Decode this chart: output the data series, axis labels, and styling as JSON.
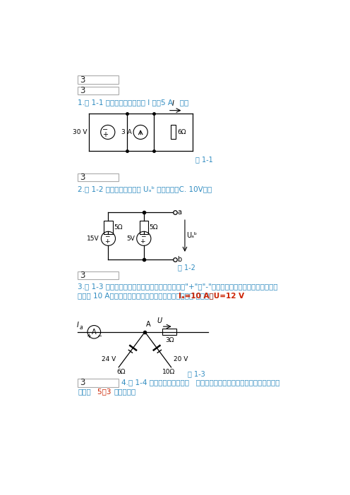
{
  "bg_color": "#ffffff",
  "text_color_blue": "#2e8bc0",
  "text_color_red": "#cc2200",
  "text_color_black": "#222222",
  "box1_text": "3",
  "box2_text": "3",
  "box3_text": "3",
  "box4_text": "3",
  "q1_text": "1.图 1-1 所示的电路中，电流 I 为（5 A   ）。",
  "q2_text": "2.图 1-2 所示电路中，电压 Uₐᵇ 的数值是（C. 10V）。",
  "q3_line1": "3.图 1-3 所示的电路中，电流表的正、负接线端用\"+\"、\"-\"号标出，现电流表指针正向偏转，",
  "q3_line2": "示数为 10 A，有关电流、电压方向也表示在图中，则（ ）正确。",
  "q3_red": "Iₐ=10 A，U=12 V",
  "q4_line1": "4.图 1-4 所示的电路中包含（   ）条支路，用支路电流法分析该电路，需要",
  "q4_line2": "列写（5，3 ）个方程。",
  "q4_red": "（5，3 ）",
  "fig1_label": "图 1-1",
  "fig2_label": "图 1-2",
  "fig3_label": "图 1-3",
  "fig1_30V": "30 V",
  "fig1_3A": "3 A",
  "fig1_6ohm": "6Ω",
  "fig1_I": "I",
  "fig2_5ohm1": "5Ω",
  "fig2_5ohm2": "5Ω",
  "fig2_15V": "15V",
  "fig2_5V": "5V",
  "fig2_a": "a",
  "fig2_b": "b",
  "fig2_Uab": "Uₐᵇ",
  "fig3_Ia": "I",
  "fig3_Ia_sub": "a",
  "fig3_A_label": "A",
  "fig3_node": "A",
  "fig3_U_label": "U",
  "fig3_3ohm": "3Ω",
  "fig3_24V": "24 V",
  "fig3_6ohm": "6Ω",
  "fig3_20V": "20 V",
  "fig3_10ohm": "10Ω"
}
